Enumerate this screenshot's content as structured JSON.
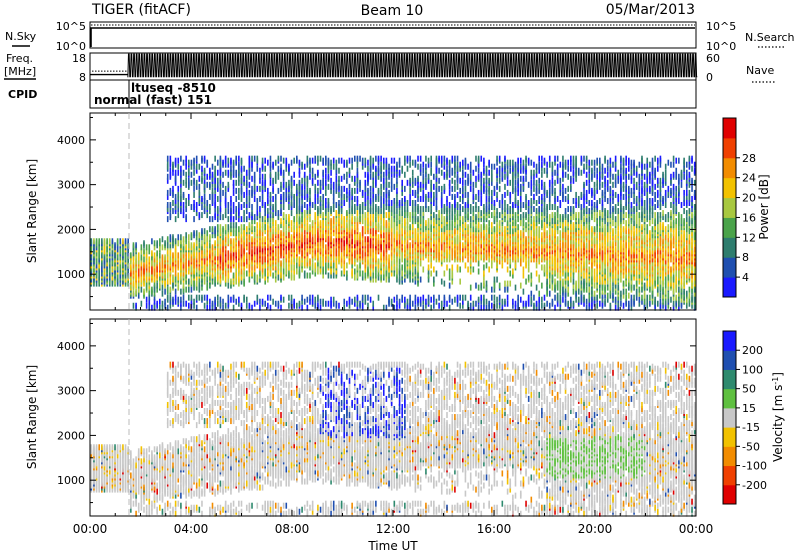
{
  "header": {
    "title": "TIGER (fitACF)",
    "beam": "Beam 10",
    "date": "05/Mar/2013"
  },
  "strips": {
    "nsky_label": "N.Sky",
    "nsky_ticks": [
      "10^5",
      "10^0"
    ],
    "nsearch_label": "N.Search",
    "nsearch_ticks": [
      "10^5",
      "10^0"
    ],
    "freq_label": "Freq.",
    "freq_unit": "[MHz]",
    "freq_ticks": [
      "18",
      "8"
    ],
    "nave_label": "Nave",
    "nave_ticks": [
      "60",
      "0"
    ],
    "cpid_label": "CPID",
    "cpid_mode_1": "normal (fast) 151",
    "cpid_mode_2": "ltuseq -8510",
    "freq_range_mhz": [
      8,
      18
    ],
    "nave_range": [
      0,
      60
    ],
    "mode_switch_time": "01:30"
  },
  "chart_data": [
    {
      "type": "heatmap",
      "panel": "power",
      "ylabel": "Slant Range [km]",
      "ylim": [
        200,
        4600
      ],
      "y_ticks": [
        "1000",
        "2000",
        "3000",
        "4000"
      ],
      "x_range_hours": [
        0,
        24
      ],
      "x_ticks": [
        "00:00",
        "04:00",
        "08:00",
        "12:00",
        "16:00",
        "20:00",
        "00:00"
      ],
      "colorbar": {
        "label": "Power [dB]",
        "ticks": [
          "4",
          "8",
          "12",
          "16",
          "20",
          "24",
          "28"
        ],
        "range": [
          0,
          30
        ],
        "colors": [
          "#1a1aff",
          "#1f4fb0",
          "#2e7d6e",
          "#4aa34a",
          "#a8c840",
          "#f2c200",
          "#f28c00",
          "#f04000",
          "#e00000"
        ]
      }
    },
    {
      "type": "heatmap",
      "panel": "velocity",
      "ylabel": "Slant Range [km]",
      "xlabel": "Time UT",
      "ylim": [
        200,
        4600
      ],
      "y_ticks": [
        "1000",
        "2000",
        "3000",
        "4000"
      ],
      "x_range_hours": [
        0,
        24
      ],
      "x_ticks": [
        "00:00",
        "04:00",
        "08:00",
        "12:00",
        "16:00",
        "20:00",
        "00:00"
      ],
      "colorbar": {
        "label": "Velocity [m s",
        "label_sup": "-1",
        "label_end": "]",
        "ticks": [
          "200",
          "100",
          "50",
          "15",
          "-15",
          "-50",
          "-100",
          "-200"
        ],
        "colors": [
          "#1a1aff",
          "#1f4fb0",
          "#2e8a6e",
          "#5fc040",
          "#c8c8c8",
          "#f2c200",
          "#f28c00",
          "#f04000",
          "#e00000"
        ]
      }
    }
  ]
}
